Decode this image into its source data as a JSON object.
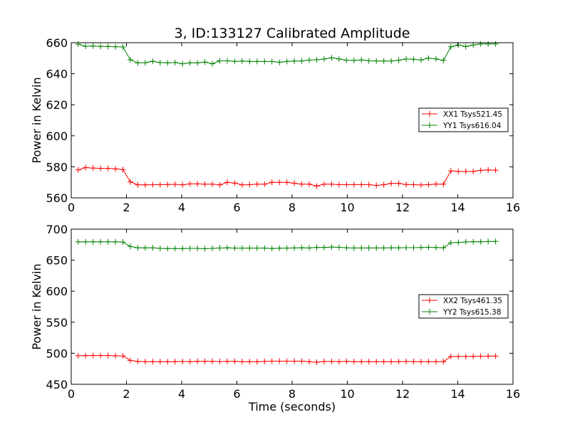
{
  "chart_data": [
    {
      "type": "line",
      "title": "3, ID:133127 Calibrated Amplitude",
      "xlabel": "",
      "ylabel": "Power in Kelvin",
      "xlim": [
        0,
        16
      ],
      "ylim": [
        560,
        660
      ],
      "xticks": [
        "0",
        "2",
        "4",
        "6",
        "8",
        "10",
        "12",
        "14",
        "16"
      ],
      "yticks": [
        "560",
        "580",
        "600",
        "620",
        "640",
        "660"
      ],
      "legend_position": "center-right",
      "x": [
        0.25,
        0.52,
        0.79,
        1.06,
        1.33,
        1.6,
        1.87,
        2.14,
        2.41,
        2.68,
        2.95,
        3.22,
        3.49,
        3.76,
        4.03,
        4.3,
        4.57,
        4.84,
        5.11,
        5.38,
        5.65,
        5.92,
        6.19,
        6.46,
        6.73,
        7.0,
        7.27,
        7.54,
        7.81,
        8.08,
        8.35,
        8.62,
        8.89,
        9.16,
        9.43,
        9.7,
        9.97,
        10.24,
        10.51,
        10.78,
        11.05,
        11.32,
        11.59,
        11.86,
        12.13,
        12.4,
        12.67,
        12.94,
        13.21,
        13.48,
        13.75,
        14.02,
        14.29,
        14.56,
        14.83,
        15.1,
        15.37
      ],
      "series": [
        {
          "name": "XX1 Tsys521.45",
          "color": "#ff0000",
          "values": [
            578.0,
            579.5,
            579.2,
            579.0,
            579.0,
            578.7,
            578.2,
            570.3,
            568.4,
            568.4,
            568.5,
            568.5,
            568.6,
            568.7,
            568.4,
            569.0,
            569.0,
            568.8,
            568.8,
            568.4,
            570.0,
            569.5,
            568.4,
            568.5,
            568.8,
            568.8,
            570.0,
            570.0,
            570.0,
            569.4,
            568.8,
            568.8,
            567.6,
            568.8,
            568.8,
            568.5,
            568.5,
            568.5,
            568.5,
            568.5,
            568.0,
            568.5,
            569.3,
            569.3,
            568.6,
            568.5,
            568.3,
            568.5,
            568.9,
            568.8,
            577.4,
            577.0,
            577.0,
            577.0,
            577.7,
            578.0,
            577.8
          ]
        },
        {
          "name": "YY1 Tsys616.04",
          "color": "#008000",
          "values": [
            659.0,
            657.7,
            657.9,
            657.6,
            657.6,
            657.4,
            657.3,
            649.0,
            647.0,
            647.1,
            648.0,
            647.2,
            647.0,
            647.2,
            646.4,
            647.0,
            647.0,
            647.5,
            646.4,
            648.3,
            648.3,
            647.9,
            648.2,
            647.9,
            647.9,
            647.9,
            647.9,
            647.4,
            647.9,
            648.2,
            648.2,
            648.8,
            649.0,
            649.5,
            650.3,
            649.5,
            648.7,
            648.6,
            648.9,
            648.3,
            648.2,
            648.2,
            648.2,
            648.7,
            649.5,
            649.3,
            648.9,
            650.0,
            649.6,
            648.6,
            657.4,
            658.5,
            657.5,
            658.5,
            659.2,
            659.2,
            659.2
          ]
        }
      ]
    },
    {
      "type": "line",
      "title": "",
      "xlabel": "Time (seconds)",
      "ylabel": "Power in Kelvin",
      "xlim": [
        0,
        16
      ],
      "ylim": [
        450,
        700
      ],
      "xticks": [
        "0",
        "2",
        "4",
        "6",
        "8",
        "10",
        "12",
        "14",
        "16"
      ],
      "yticks": [
        "450",
        "500",
        "550",
        "600",
        "650",
        "700"
      ],
      "legend_position": "center-right",
      "x": [
        0.25,
        0.52,
        0.79,
        1.06,
        1.33,
        1.6,
        1.87,
        2.14,
        2.41,
        2.68,
        2.95,
        3.22,
        3.49,
        3.76,
        4.03,
        4.3,
        4.57,
        4.84,
        5.11,
        5.38,
        5.65,
        5.92,
        6.19,
        6.46,
        6.73,
        7.0,
        7.27,
        7.54,
        7.81,
        8.08,
        8.35,
        8.62,
        8.89,
        9.16,
        9.43,
        9.7,
        9.97,
        10.24,
        10.51,
        10.78,
        11.05,
        11.32,
        11.59,
        11.86,
        12.13,
        12.4,
        12.67,
        12.94,
        13.21,
        13.48,
        13.75,
        14.02,
        14.29,
        14.56,
        14.83,
        15.1,
        15.37
      ],
      "series": [
        {
          "name": "XX2 Tsys461.35",
          "color": "#ff0000",
          "values": [
            496.0,
            496.2,
            496.3,
            496.3,
            496.3,
            496.0,
            495.8,
            488.5,
            487.0,
            486.5,
            486.5,
            486.5,
            486.5,
            486.5,
            486.8,
            486.5,
            487.0,
            487.0,
            487.0,
            486.7,
            487.0,
            487.0,
            486.5,
            486.5,
            486.5,
            486.8,
            487.3,
            487.3,
            487.3,
            487.3,
            487.3,
            486.5,
            485.5,
            486.8,
            486.8,
            486.5,
            487.0,
            486.5,
            486.5,
            486.5,
            486.5,
            486.5,
            486.5,
            486.5,
            486.8,
            486.5,
            486.5,
            486.5,
            486.5,
            486.5,
            494.8,
            494.8,
            494.8,
            495.0,
            495.2,
            495.4,
            495.4
          ]
        },
        {
          "name": "YY2 Tsys615.38",
          "color": "#008000",
          "values": [
            679.5,
            679.6,
            679.6,
            679.6,
            679.6,
            679.6,
            679.2,
            672.1,
            670.0,
            669.8,
            669.9,
            669.0,
            668.7,
            668.7,
            668.7,
            669.0,
            669.0,
            668.5,
            669.0,
            669.6,
            670.0,
            669.5,
            669.5,
            669.5,
            669.5,
            669.5,
            668.8,
            669.3,
            669.5,
            669.7,
            670.0,
            669.7,
            670.6,
            670.4,
            671.2,
            670.7,
            670.0,
            669.7,
            669.7,
            669.7,
            669.7,
            669.7,
            670.0,
            670.0,
            670.2,
            670.2,
            670.5,
            670.8,
            670.5,
            670.0,
            678.1,
            678.6,
            679.5,
            679.8,
            679.6,
            680.0,
            680.2
          ]
        }
      ]
    }
  ]
}
